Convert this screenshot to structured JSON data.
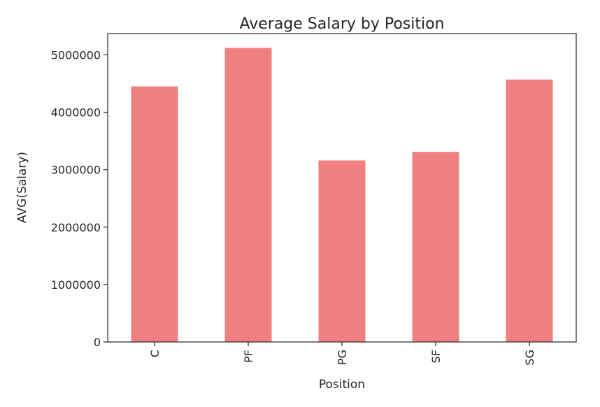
{
  "chart_data": {
    "type": "bar",
    "title": "Average Salary by Position",
    "xlabel": "Position",
    "ylabel": "AVG(Salary)",
    "categories": [
      "C",
      "PF",
      "PG",
      "SF",
      "SG"
    ],
    "values": [
      4450000,
      5120000,
      3160000,
      3310000,
      4570000
    ],
    "yticks": [
      0,
      1000000,
      2000000,
      3000000,
      4000000,
      5000000
    ],
    "ylim": [
      0,
      5370000
    ],
    "bar_color": "#f08080",
    "grid": false,
    "legend": "none"
  }
}
